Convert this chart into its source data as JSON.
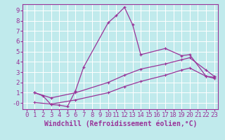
{
  "xlabel": "Windchill (Refroidissement éolien,°C)",
  "bg_color": "#c0eaec",
  "line_color": "#993399",
  "xlim": [
    -0.5,
    23.5
  ],
  "ylim": [
    -0.6,
    9.6
  ],
  "yticks": [
    0,
    1,
    2,
    3,
    4,
    5,
    6,
    7,
    8,
    9
  ],
  "ytick_labels": [
    "-0",
    "1",
    "2",
    "3",
    "4",
    "5",
    "6",
    "7",
    "8",
    "9"
  ],
  "xticks": [
    0,
    1,
    2,
    3,
    4,
    5,
    6,
    7,
    8,
    9,
    10,
    11,
    12,
    13,
    14,
    15,
    16,
    17,
    18,
    19,
    20,
    21,
    22,
    23
  ],
  "line1_x": [
    1,
    2,
    3,
    4,
    5,
    6,
    7,
    10,
    11,
    12,
    13,
    14,
    17,
    19,
    20,
    22,
    23
  ],
  "line1_y": [
    1.0,
    0.7,
    -0.15,
    -0.2,
    -0.35,
    1.2,
    3.5,
    7.8,
    8.5,
    9.3,
    7.6,
    4.7,
    5.3,
    4.6,
    4.7,
    2.6,
    2.5
  ],
  "line2_x": [
    1,
    3,
    6,
    10,
    12,
    14,
    17,
    19,
    20,
    22,
    23
  ],
  "line2_y": [
    1.0,
    0.5,
    1.0,
    2.0,
    2.7,
    3.3,
    3.8,
    4.2,
    4.4,
    3.2,
    2.6
  ],
  "line3_x": [
    1,
    3,
    6,
    10,
    12,
    14,
    17,
    19,
    20,
    22,
    23
  ],
  "line3_y": [
    0.05,
    -0.1,
    0.3,
    1.0,
    1.6,
    2.1,
    2.7,
    3.2,
    3.4,
    2.6,
    2.4
  ],
  "xlabel_fontsize": 7,
  "tick_fontsize": 6.5
}
